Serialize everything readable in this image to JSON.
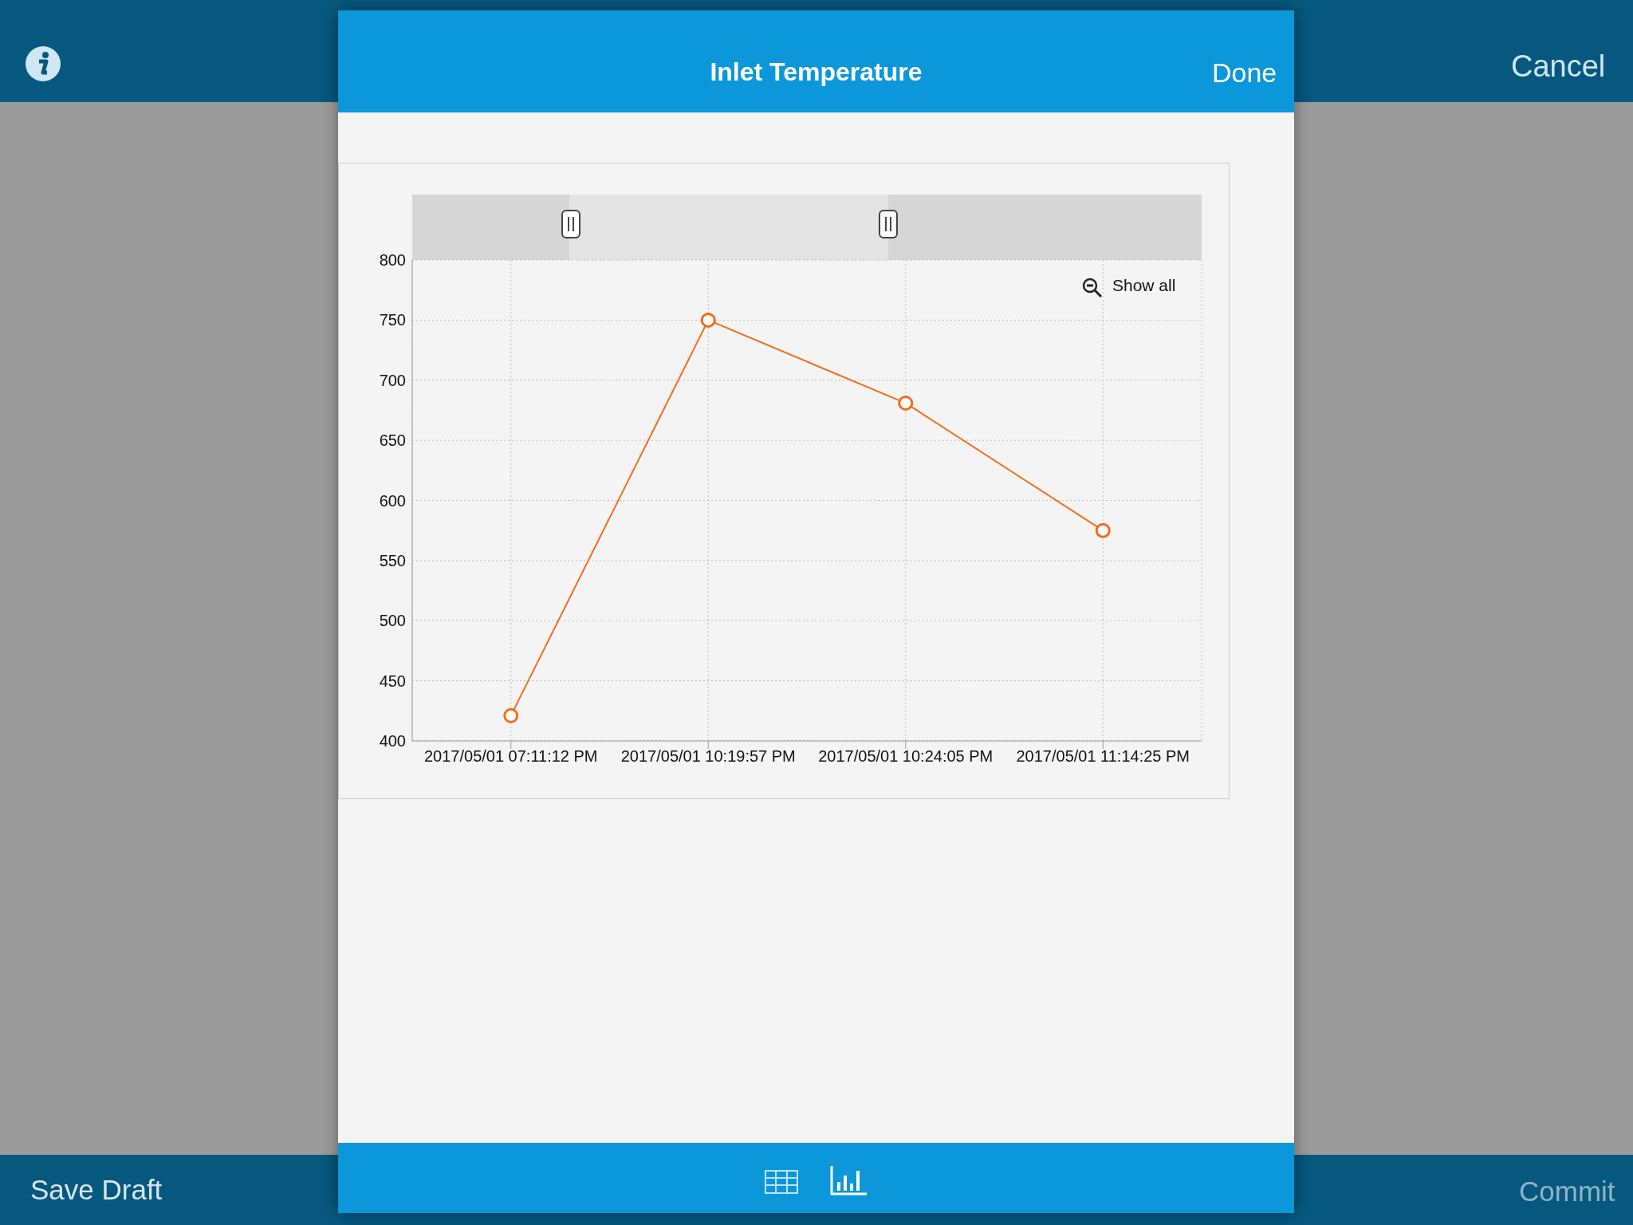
{
  "chart_data": {
    "type": "line",
    "title": "Inlet Temperature",
    "categories": [
      "2017/05/01 07:11:12 PM",
      "2017/05/01 10:19:57 PM",
      "2017/05/01 10:24:05 PM",
      "2017/05/01 11:14:25 PM"
    ],
    "series": [
      {
        "color": "#f26c1a",
        "values": [
          421,
          750,
          681,
          575
        ]
      }
    ],
    "ylim": [
      400,
      800
    ],
    "yticks": [
      400,
      450,
      500,
      550,
      600,
      650,
      700,
      750,
      800
    ],
    "grid": true,
    "marker": "circle",
    "line_style": "solid",
    "annotations": [
      "Done",
      "Show all",
      "Cancel",
      "Save Draft",
      "Commit"
    ]
  }
}
